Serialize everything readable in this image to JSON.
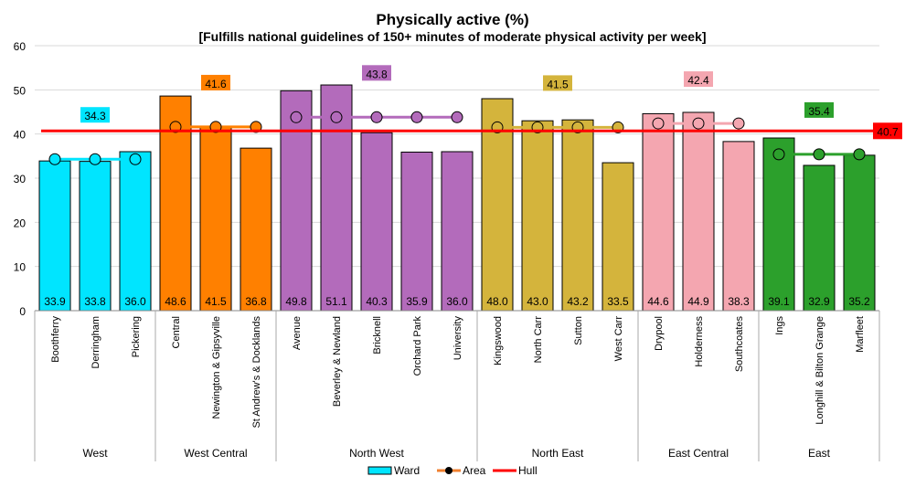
{
  "chart_data": {
    "type": "bar",
    "title": "Physically active (%)",
    "subtitle": "[Fulfills national guidelines of 150+ minutes of moderate physical activity per week]",
    "ylim": [
      0,
      60
    ],
    "yticks": [
      "0",
      "10",
      "20",
      "30",
      "40",
      "50",
      "60"
    ],
    "grid": true,
    "legend_position": "bottom",
    "legend": {
      "ward": "Ward",
      "area": "Area",
      "hull": "Hull"
    },
    "hull": {
      "value": 40.7,
      "label": "40.7",
      "color": "#ff0000"
    },
    "groups": [
      {
        "name": "West",
        "color": "#00e5ff",
        "area": 34.3,
        "area_label": "34.3",
        "wards": [
          "Boothferry",
          "Derringham",
          "Pickering"
        ],
        "values": [
          33.9,
          33.8,
          36.0
        ],
        "labels": [
          "33.9",
          "33.8",
          "36.0"
        ]
      },
      {
        "name": "West Central",
        "color": "#ff8000",
        "area": 41.6,
        "area_label": "41.6",
        "wards": [
          "Central",
          "Newington & Gipsyville",
          "St Andrew's & Docklands"
        ],
        "values": [
          48.6,
          41.5,
          36.8
        ],
        "labels": [
          "48.6",
          "41.5",
          "36.8"
        ]
      },
      {
        "name": "North West",
        "color": "#b36bbb",
        "area": 43.8,
        "area_label": "43.8",
        "wards": [
          "Avenue",
          "Beverley & Newland",
          "Bricknell",
          "Orchard Park",
          "University"
        ],
        "values": [
          49.8,
          51.1,
          40.3,
          35.9,
          36.0
        ],
        "labels": [
          "49.8",
          "51.1",
          "40.3",
          "35.9",
          "36.0"
        ]
      },
      {
        "name": "North East",
        "color": "#d4b43c",
        "area": 41.5,
        "area_label": "41.5",
        "wards": [
          "Kingswood",
          "North Carr",
          "Sutton",
          "West Carr"
        ],
        "values": [
          48.0,
          43.0,
          43.2,
          33.5
        ],
        "labels": [
          "48.0",
          "43.0",
          "43.2",
          "33.5"
        ]
      },
      {
        "name": "East Central",
        "color": "#f4a6b0",
        "area": 42.4,
        "area_label": "42.4",
        "wards": [
          "Drypool",
          "Holderness",
          "Southcoates"
        ],
        "values": [
          44.6,
          44.9,
          38.3
        ],
        "labels": [
          "44.6",
          "44.9",
          "38.3"
        ]
      },
      {
        "name": "East",
        "color": "#2ca02c",
        "area": 35.4,
        "area_label": "35.4",
        "wards": [
          "Ings",
          "Longhill & Bilton Grange",
          "Marfleet"
        ],
        "values": [
          39.1,
          32.9,
          35.2
        ],
        "labels": [
          "39.1",
          "32.9",
          "35.2"
        ]
      }
    ]
  }
}
